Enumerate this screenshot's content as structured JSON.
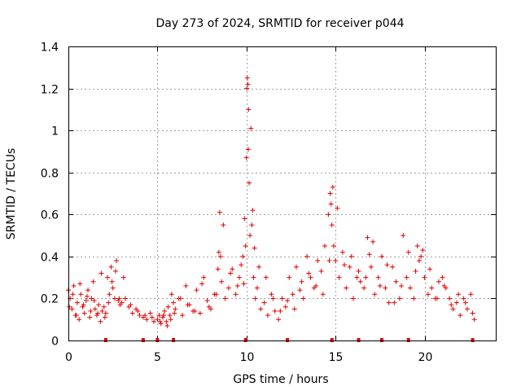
{
  "chart_data": {
    "type": "scatter",
    "title": "Day 273 of 2024, SRMTID for receiver p044",
    "xlabel": "GPS time / hours",
    "ylabel": "SRMTID / TECUs",
    "xlim": [
      0,
      24
    ],
    "ylim": [
      0,
      1.4
    ],
    "xticks": [
      0,
      5,
      10,
      15,
      20
    ],
    "yticks": [
      0,
      0.2,
      0.4,
      0.6,
      0.8,
      1,
      1.2,
      1.4
    ],
    "ytick_labels": [
      "0",
      "0.2",
      "0.4",
      "0.6",
      "0.8",
      "1",
      "1.2",
      "1.4"
    ],
    "grid": true,
    "marker": "+",
    "color": "#e00000",
    "series": [
      {
        "name": "SRMTID",
        "x": [
          0.0,
          0.1,
          0.2,
          0.3,
          0.4,
          0.5,
          0.6,
          0.7,
          0.8,
          0.9,
          1.0,
          1.1,
          1.2,
          1.3,
          1.4,
          1.5,
          1.6,
          1.7,
          1.8,
          1.9,
          2.0,
          2.1,
          2.2,
          2.3,
          2.4,
          2.5,
          2.6,
          2.7,
          2.8,
          2.9,
          3.0,
          3.2,
          3.4,
          3.6,
          3.8,
          4.0,
          4.2,
          4.4,
          4.6,
          4.8,
          5.0,
          5.1,
          5.2,
          5.3,
          5.4,
          5.5,
          5.6,
          5.7,
          5.8,
          5.9,
          6.0,
          6.2,
          6.4,
          6.6,
          6.8,
          7.0,
          7.2,
          7.4,
          7.6,
          7.8,
          8.0,
          8.2,
          8.4,
          8.5,
          8.6,
          8.8,
          9.0,
          9.2,
          9.4,
          9.6,
          9.8,
          9.9,
          10.0,
          10.05,
          10.1,
          10.15,
          10.2,
          10.3,
          10.4,
          10.5,
          10.6,
          10.8,
          11.0,
          11.2,
          11.4,
          11.6,
          11.8,
          12.0,
          12.2,
          12.4,
          12.6,
          12.8,
          13.0,
          13.2,
          13.4,
          13.6,
          13.8,
          14.0,
          14.2,
          14.4,
          14.6,
          14.7,
          14.8,
          14.9,
          15.0,
          15.2,
          15.4,
          15.6,
          15.8,
          16.0,
          16.2,
          16.4,
          16.6,
          16.8,
          17.0,
          17.2,
          17.4,
          17.6,
          17.8,
          18.0,
          18.2,
          18.4,
          18.6,
          18.8,
          19.0,
          19.2,
          19.4,
          19.6,
          19.8,
          20.0,
          20.2,
          20.4,
          20.6,
          20.8,
          21.0,
          21.2,
          21.4,
          21.6,
          21.8,
          22.0,
          22.2,
          22.4,
          22.6,
          22.8,
          0.05,
          0.25,
          0.45,
          0.65,
          0.85,
          1.05,
          1.25,
          1.45,
          1.65,
          1.85,
          2.05,
          2.25,
          2.45,
          2.65,
          2.85,
          3.1,
          3.5,
          3.9,
          4.3,
          4.7,
          5.15,
          5.35,
          5.55,
          5.75,
          5.95,
          6.3,
          6.7,
          7.1,
          7.5,
          7.9,
          8.3,
          8.45,
          8.55,
          8.7,
          9.1,
          9.5,
          9.7,
          9.85,
          9.95,
          10.02,
          10.08,
          10.12,
          10.25,
          10.35,
          10.45,
          10.7,
          11.1,
          11.5,
          11.9,
          12.3,
          12.7,
          13.1,
          13.5,
          13.9,
          14.3,
          14.65,
          14.75,
          14.85,
          15.1,
          15.5,
          15.9,
          16.3,
          16.7,
          16.9,
          17.1,
          17.5,
          17.9,
          18.3,
          18.7,
          19.1,
          19.5,
          19.7,
          19.9,
          20.3,
          20.7,
          21.1,
          21.5,
          21.9,
          22.3,
          22.7
        ],
        "y": [
          0.24,
          0.2,
          0.15,
          0.26,
          0.12,
          0.18,
          0.1,
          0.22,
          0.16,
          0.13,
          0.19,
          0.24,
          0.11,
          0.2,
          0.28,
          0.15,
          0.12,
          0.17,
          0.09,
          0.14,
          0.16,
          0.13,
          0.3,
          0.22,
          0.35,
          0.25,
          0.2,
          0.38,
          0.19,
          0.17,
          0.18,
          0.2,
          0.16,
          0.13,
          0.15,
          0.12,
          0.11,
          0.1,
          0.13,
          0.09,
          0.1,
          0.12,
          0.08,
          0.11,
          0.14,
          0.09,
          0.16,
          0.12,
          0.22,
          0.18,
          0.15,
          0.2,
          0.12,
          0.26,
          0.17,
          0.14,
          0.24,
          0.13,
          0.3,
          0.19,
          0.15,
          0.22,
          0.34,
          0.61,
          0.28,
          0.2,
          0.25,
          0.34,
          0.22,
          0.3,
          0.4,
          0.58,
          0.87,
          1.25,
          0.91,
          0.75,
          0.5,
          0.55,
          0.3,
          0.2,
          0.25,
          0.15,
          0.18,
          0.12,
          0.22,
          0.14,
          0.1,
          0.2,
          0.16,
          0.3,
          0.22,
          0.35,
          0.24,
          0.2,
          0.4,
          0.3,
          0.25,
          0.38,
          0.33,
          0.45,
          0.6,
          0.7,
          0.55,
          0.45,
          0.38,
          0.3,
          0.42,
          0.25,
          0.35,
          0.2,
          0.3,
          0.28,
          0.25,
          0.49,
          0.35,
          0.22,
          0.3,
          0.4,
          0.25,
          0.18,
          0.35,
          0.28,
          0.2,
          0.5,
          0.3,
          0.25,
          0.2,
          0.45,
          0.4,
          0.3,
          0.22,
          0.25,
          0.2,
          0.28,
          0.3,
          0.25,
          0.2,
          0.15,
          0.18,
          0.12,
          0.2,
          0.15,
          0.22,
          0.1,
          0.16,
          0.22,
          0.12,
          0.27,
          0.17,
          0.21,
          0.14,
          0.19,
          0.13,
          0.32,
          0.11,
          0.18,
          0.28,
          0.33,
          0.2,
          0.3,
          0.17,
          0.14,
          0.12,
          0.11,
          0.09,
          0.12,
          0.07,
          0.1,
          0.13,
          0.2,
          0.17,
          0.14,
          0.27,
          0.16,
          0.22,
          0.42,
          0.4,
          0.55,
          0.32,
          0.26,
          0.36,
          0.27,
          0.45,
          1.2,
          1.22,
          1.1,
          1.01,
          0.62,
          0.44,
          0.35,
          0.3,
          0.2,
          0.14,
          0.19,
          0.15,
          0.28,
          0.32,
          0.26,
          0.22,
          0.38,
          0.65,
          0.73,
          0.63,
          0.36,
          0.4,
          0.33,
          0.3,
          0.41,
          0.47,
          0.26,
          0.36,
          0.18,
          0.26,
          0.42,
          0.33,
          0.38,
          0.43,
          0.34,
          0.2,
          0.26,
          0.17,
          0.22,
          0.18,
          0.13
        ]
      }
    ],
    "axis_markers": [
      2.1,
      4.2,
      5.0,
      5.9,
      9.95,
      12.3,
      14.8,
      16.3,
      17.6,
      19.1,
      22.7
    ]
  }
}
